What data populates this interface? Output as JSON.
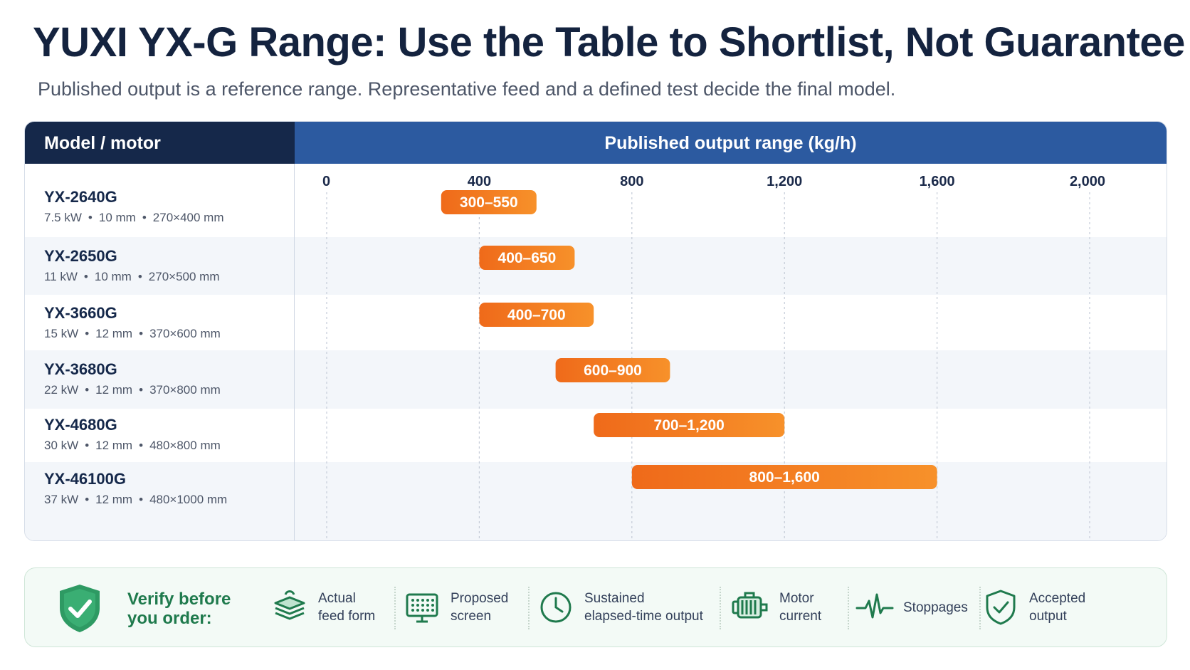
{
  "title": "YUXI YX-G Range: Use the Table to Shortlist, Not Guarantee",
  "subtitle": "Published output is a reference range. Representative feed and a defined test decide the final model.",
  "table": {
    "left_header": "Model / motor",
    "right_header": "Published output range (kg/h)",
    "rows": [
      {
        "model": "YX-2640G",
        "power": "7.5 kW",
        "gap": "10 mm",
        "size": "270×400 mm"
      },
      {
        "model": "YX-2650G",
        "power": "11 kW",
        "gap": "10 mm",
        "size": "270×500 mm"
      },
      {
        "model": "YX-3660G",
        "power": "15 kW",
        "gap": "12 mm",
        "size": "370×600 mm"
      },
      {
        "model": "YX-3680G",
        "power": "22 kW",
        "gap": "12 mm",
        "size": "370×800 mm"
      },
      {
        "model": "YX-4680G",
        "power": "30 kW",
        "gap": "12 mm",
        "size": "480×800 mm"
      },
      {
        "model": "YX-46100G",
        "power": "37 kW",
        "gap": "12 mm",
        "size": "480×1000 mm"
      }
    ],
    "separator": "•"
  },
  "chart_data": {
    "type": "bar",
    "orientation": "horizontal-range",
    "title": "Published output range (kg/h)",
    "xlim": [
      0,
      2000
    ],
    "ticks": [
      0,
      400,
      800,
      1200,
      1600,
      2000
    ],
    "tick_labels": [
      "0",
      "400",
      "800",
      "1,200",
      "1,600",
      "2,000"
    ],
    "grid": true,
    "categories": [
      "YX-2640G",
      "YX-2650G",
      "YX-3660G",
      "YX-3680G",
      "YX-4680G",
      "YX-46100G"
    ],
    "ranges": [
      [
        300,
        550
      ],
      [
        400,
        650
      ],
      [
        400,
        700
      ],
      [
        600,
        900
      ],
      [
        700,
        1200
      ],
      [
        800,
        1600
      ]
    ],
    "labels": [
      "300–550",
      "400–650",
      "400–700",
      "600–900",
      "700–1,200",
      "800–1,600"
    ],
    "bar_color": "#f07c1e"
  },
  "verify": {
    "title": "Verify before you order:",
    "items": [
      {
        "label": "Actual\nfeed form",
        "icon": "layers-icon"
      },
      {
        "label": "Proposed\nscreen",
        "icon": "screen-icon"
      },
      {
        "label": "Sustained\nelapsed-time output",
        "icon": "clock-icon"
      },
      {
        "label": "Motor\ncurrent",
        "icon": "motor-icon"
      },
      {
        "label": "Stoppages",
        "icon": "pulse-icon"
      },
      {
        "label": "Accepted\noutput",
        "icon": "shield-check-icon"
      }
    ]
  },
  "colors": {
    "navy": "#15284a",
    "blue": "#2c5aa0",
    "orange": "#f07c1e",
    "green": "#1f7a4d"
  }
}
